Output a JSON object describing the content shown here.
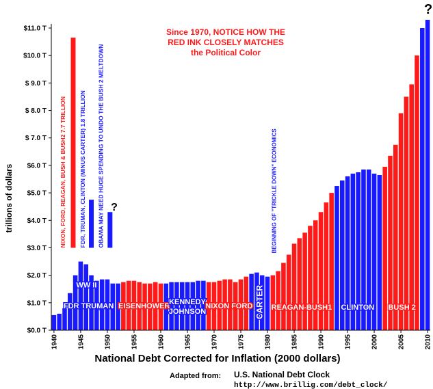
{
  "chart_data": {
    "type": "bar",
    "title": "National Debt Corrected for Inflation (2000 dollars)",
    "y_label": "trillions of dollars",
    "x": [
      1940,
      1941,
      1942,
      1943,
      1944,
      1945,
      1946,
      1947,
      1948,
      1949,
      1950,
      1951,
      1952,
      1953,
      1954,
      1955,
      1956,
      1957,
      1958,
      1959,
      1960,
      1961,
      1962,
      1963,
      1964,
      1965,
      1966,
      1967,
      1968,
      1969,
      1970,
      1971,
      1972,
      1973,
      1974,
      1975,
      1976,
      1977,
      1978,
      1979,
      1980,
      1981,
      1982,
      1983,
      1984,
      1985,
      1986,
      1987,
      1988,
      1989,
      1990,
      1991,
      1992,
      1993,
      1994,
      1995,
      1996,
      1997,
      1998,
      1999,
      2000,
      2001,
      2002,
      2003,
      2004,
      2005,
      2006,
      2007,
      2008,
      2009,
      2010
    ],
    "series": [
      {
        "values": [
          0.55,
          0.6,
          0.8,
          1.35,
          2.0,
          2.5,
          2.4,
          2.0,
          1.8,
          1.85,
          1.85,
          1.7,
          1.7,
          1.75,
          1.8,
          1.8,
          1.75,
          1.7,
          1.7,
          1.75,
          1.7,
          1.7,
          1.75,
          1.75,
          1.75,
          1.75,
          1.75,
          1.8,
          1.8,
          1.75,
          1.75,
          1.8,
          1.85,
          1.85,
          1.75,
          1.85,
          1.95,
          2.05,
          2.1,
          2.0,
          1.95,
          2.0,
          2.15,
          2.45,
          2.75,
          3.15,
          3.35,
          3.55,
          3.8,
          4.0,
          4.3,
          4.65,
          5.0,
          5.25,
          5.45,
          5.6,
          5.7,
          5.75,
          5.85,
          5.85,
          5.7,
          5.65,
          5.95,
          6.35,
          6.75,
          7.9,
          8.5,
          8.95,
          10.0,
          11.0,
          11.3
        ],
        "colors": [
          "#1a1aff",
          "#1a1aff",
          "#1a1aff",
          "#1a1aff",
          "#1a1aff",
          "#1a1aff",
          "#1a1aff",
          "#1a1aff",
          "#1a1aff",
          "#1a1aff",
          "#1a1aff",
          "#1a1aff",
          "#1a1aff",
          "#ff1a1a",
          "#ff1a1a",
          "#ff1a1a",
          "#ff1a1a",
          "#ff1a1a",
          "#ff1a1a",
          "#ff1a1a",
          "#ff1a1a",
          "#1a1aff",
          "#1a1aff",
          "#1a1aff",
          "#1a1aff",
          "#1a1aff",
          "#1a1aff",
          "#1a1aff",
          "#1a1aff",
          "#ff1a1a",
          "#ff1a1a",
          "#ff1a1a",
          "#ff1a1a",
          "#ff1a1a",
          "#ff1a1a",
          "#ff1a1a",
          "#ff1a1a",
          "#1a1aff",
          "#1a1aff",
          "#1a1aff",
          "#1a1aff",
          "#ff1a1a",
          "#ff1a1a",
          "#ff1a1a",
          "#ff1a1a",
          "#ff1a1a",
          "#ff1a1a",
          "#ff1a1a",
          "#ff1a1a",
          "#ff1a1a",
          "#ff1a1a",
          "#ff1a1a",
          "#ff1a1a",
          "#1a1aff",
          "#1a1aff",
          "#1a1aff",
          "#1a1aff",
          "#1a1aff",
          "#1a1aff",
          "#1a1aff",
          "#1a1aff",
          "#1a1aff",
          "#ff1a1a",
          "#ff1a1a",
          "#ff1a1a",
          "#ff1a1a",
          "#ff1a1a",
          "#ff1a1a",
          "#ff1a1a",
          "#1a1aff",
          "#1a1aff"
        ]
      }
    ],
    "xlim": [
      1939.5,
      2010.5
    ],
    "xticks": [
      1940,
      1945,
      1950,
      1955,
      1960,
      1965,
      1970,
      1975,
      1980,
      1985,
      1990,
      1995,
      2000,
      2005,
      2010
    ],
    "ylim": [
      0,
      11
    ],
    "yticks": [
      {
        "value": 0,
        "label": "$0.0 T"
      },
      {
        "value": 1,
        "label": "$1.0 T"
      },
      {
        "value": 2,
        "label": "$2.0 T"
      },
      {
        "value": 3,
        "label": "$3.0 T"
      },
      {
        "value": 4,
        "label": "$4.0 T"
      },
      {
        "value": 5,
        "label": "$5.0 T"
      },
      {
        "value": 6,
        "label": "$6.0 T"
      },
      {
        "value": 7,
        "label": "$ 7.0 T"
      },
      {
        "value": 8,
        "label": "$ 8.0 T"
      },
      {
        "value": 9,
        "label": "$ 9.0 T"
      },
      {
        "value": 10,
        "label": "$10.0 T"
      },
      {
        "value": 11,
        "label": "$11.0 T"
      }
    ],
    "comparison_bars": [
      {
        "label": "NIXON, FORD, REAGAN, BUSH & BUSH2   7.7 TRILLION",
        "from": 3.0,
        "to": 10.65,
        "color": "#ff1a1a"
      },
      {
        "label": "FDR, TRUMAN, CLINTON (MINUS CARTER) 1.8 TRILLION",
        "from": 3.0,
        "to": 4.75,
        "color": "#1a1aff"
      },
      {
        "label": "OBAMA  MAY NEED HUGE SPENDING TO UNDO THE BUSH 2 MELTDOWN",
        "from": 3.0,
        "to": 4.3,
        "color": "#1a1aff"
      }
    ],
    "eras": [
      "WW II",
      "FDR TRUMAN",
      "EISENHOWER",
      "KENNEDY",
      "JOHNSON",
      "NIXON FORD",
      "CARTER",
      "REAGAN-BUSH1",
      "CLINTON",
      "BUSH  2"
    ],
    "annotation": [
      "Since 1970, NOTICE HOW THE",
      "RED INK CLOSELY MATCHES",
      "the Political Color"
    ],
    "trickle_down": "BEGINNING OF \"TRICKLE DOWN\" ECONOMICS",
    "question_marks": [
      "?",
      "?"
    ],
    "source_prefix": "Adapted from:",
    "source_name": "U.S. National Debt Clock",
    "source_url": "http://www.brillig.com/debt_clock/"
  }
}
